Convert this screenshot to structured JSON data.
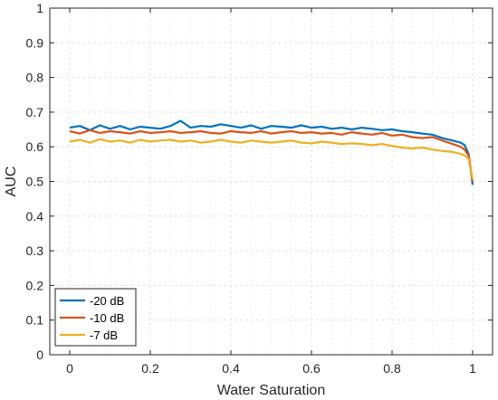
{
  "chart_data": {
    "type": "line",
    "xlabel": "Water Saturation",
    "ylabel": "AUC",
    "xlim": [
      0,
      1
    ],
    "ylim": [
      0,
      1
    ],
    "xticks": [
      "0",
      "0.2",
      "0.4",
      "0.6",
      "0.8",
      "1"
    ],
    "yticks": [
      "0",
      "0.1",
      "0.2",
      "0.3",
      "0.4",
      "0.5",
      "0.6",
      "0.7",
      "0.8",
      "0.9",
      "1"
    ],
    "grid": true,
    "legend_position": "bottom-left",
    "x": [
      0,
      0.025,
      0.05,
      0.075,
      0.1,
      0.125,
      0.15,
      0.175,
      0.2,
      0.225,
      0.25,
      0.275,
      0.3,
      0.325,
      0.35,
      0.375,
      0.4,
      0.425,
      0.45,
      0.475,
      0.5,
      0.525,
      0.55,
      0.575,
      0.6,
      0.625,
      0.65,
      0.675,
      0.7,
      0.725,
      0.75,
      0.775,
      0.8,
      0.825,
      0.85,
      0.875,
      0.9,
      0.925,
      0.95,
      0.97,
      0.98,
      0.99,
      1.0
    ],
    "series": [
      {
        "name": "-20 dB",
        "color": "#0072BD",
        "values": [
          0.655,
          0.66,
          0.648,
          0.662,
          0.652,
          0.66,
          0.65,
          0.658,
          0.655,
          0.652,
          0.66,
          0.675,
          0.655,
          0.66,
          0.658,
          0.665,
          0.66,
          0.655,
          0.662,
          0.652,
          0.66,
          0.658,
          0.655,
          0.662,
          0.655,
          0.658,
          0.652,
          0.655,
          0.65,
          0.655,
          0.652,
          0.648,
          0.65,
          0.645,
          0.642,
          0.638,
          0.635,
          0.625,
          0.618,
          0.612,
          0.605,
          0.58,
          0.49
        ]
      },
      {
        "name": "-10 dB",
        "color": "#D95319",
        "values": [
          0.645,
          0.638,
          0.648,
          0.64,
          0.645,
          0.642,
          0.638,
          0.645,
          0.64,
          0.642,
          0.645,
          0.64,
          0.642,
          0.645,
          0.64,
          0.638,
          0.645,
          0.642,
          0.64,
          0.645,
          0.638,
          0.642,
          0.645,
          0.64,
          0.642,
          0.638,
          0.64,
          0.635,
          0.642,
          0.638,
          0.635,
          0.64,
          0.632,
          0.635,
          0.628,
          0.625,
          0.628,
          0.618,
          0.608,
          0.6,
          0.592,
          0.575,
          0.5
        ]
      },
      {
        "name": "-7 dB",
        "color": "#EDB120",
        "values": [
          0.615,
          0.62,
          0.612,
          0.622,
          0.615,
          0.618,
          0.612,
          0.62,
          0.615,
          0.618,
          0.62,
          0.615,
          0.618,
          0.612,
          0.615,
          0.62,
          0.615,
          0.612,
          0.618,
          0.615,
          0.612,
          0.615,
          0.618,
          0.612,
          0.61,
          0.615,
          0.612,
          0.608,
          0.61,
          0.608,
          0.605,
          0.608,
          0.602,
          0.598,
          0.595,
          0.598,
          0.592,
          0.588,
          0.585,
          0.58,
          0.575,
          0.565,
          0.505
        ]
      }
    ]
  }
}
